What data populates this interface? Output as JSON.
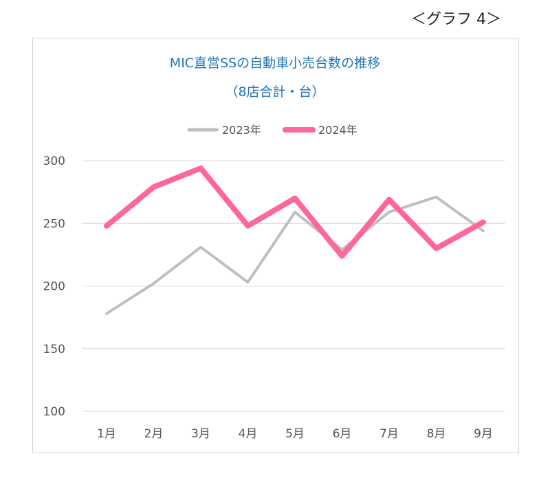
{
  "caption": "＜グラフ 4＞",
  "chart_data": {
    "type": "line",
    "title": "MIC直営SSの自動車小売台数の推移",
    "subtitle": "（8店合計・台）",
    "categories": [
      "1月",
      "2月",
      "3月",
      "4月",
      "5月",
      "6月",
      "7月",
      "8月",
      "9月"
    ],
    "series": [
      {
        "name": "2023年",
        "color": "#bfbfbf",
        "values": [
          178,
          202,
          231,
          203,
          259,
          229,
          259,
          271,
          244
        ]
      },
      {
        "name": "2024年",
        "color": "#ff6699",
        "values": [
          248,
          279,
          294,
          248,
          270,
          224,
          269,
          230,
          251
        ]
      }
    ],
    "yticks": [
      "300",
      "250",
      "200",
      "150",
      "100"
    ],
    "ylim": [
      100,
      300
    ],
    "grid": true,
    "legend": "top-center"
  }
}
